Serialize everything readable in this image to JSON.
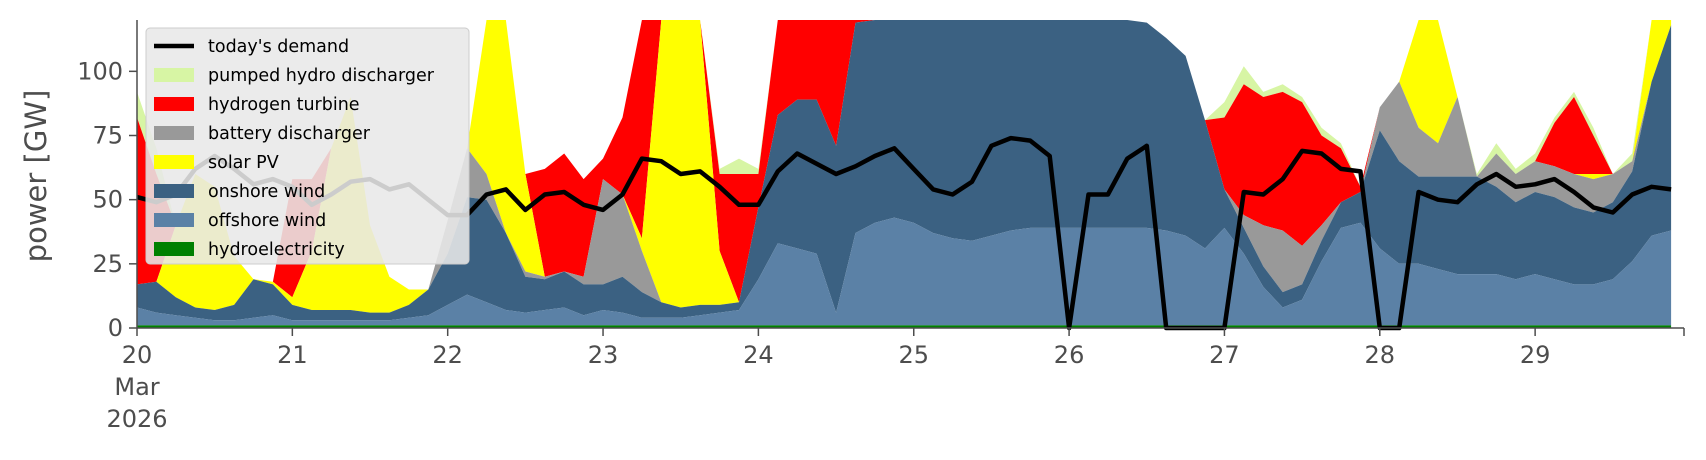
{
  "chart_data": {
    "type": "area",
    "ylabel": "power [GW]",
    "ylim": [
      0,
      120
    ],
    "xlim": [
      "2026-03-20T00:00",
      "2026-03-29T23:00"
    ],
    "yticks": [
      0,
      25,
      50,
      75,
      100
    ],
    "xticks": [
      {
        "value": "2026-03-20",
        "label": "20",
        "sub": [
          "Mar",
          "2026"
        ]
      },
      {
        "value": "2026-03-21",
        "label": "21"
      },
      {
        "value": "2026-03-22",
        "label": "22"
      },
      {
        "value": "2026-03-23",
        "label": "23"
      },
      {
        "value": "2026-03-24",
        "label": "24"
      },
      {
        "value": "2026-03-25",
        "label": "25"
      },
      {
        "value": "2026-03-26",
        "label": "26"
      },
      {
        "value": "2026-03-27",
        "label": "27"
      },
      {
        "value": "2026-03-28",
        "label": "28"
      },
      {
        "value": "2026-03-29",
        "label": "29"
      }
    ],
    "grid": false,
    "legend_position": "upper-left",
    "time_step_hours": 3,
    "series": [
      {
        "name": "hydroelectricity",
        "color": "#008000",
        "values": [
          1,
          1,
          1,
          1,
          1,
          1,
          1,
          1,
          1,
          1,
          1,
          1,
          1,
          1,
          1,
          1,
          1,
          1,
          1,
          1,
          1,
          1,
          1,
          1,
          1,
          1,
          1,
          1,
          1,
          1,
          1,
          1,
          1,
          1,
          1,
          1,
          1,
          1,
          1,
          1,
          1,
          1,
          1,
          1,
          1,
          1,
          1,
          1,
          1,
          1,
          1,
          1,
          1,
          1,
          1,
          1,
          1,
          1,
          1,
          1,
          1,
          1,
          1,
          1,
          1,
          1,
          1,
          1,
          1,
          1,
          1,
          1,
          1,
          1,
          1,
          1,
          1,
          1,
          1,
          1
        ]
      },
      {
        "name": "offshore wind",
        "color": "#5b81a6",
        "values": [
          7,
          5,
          4,
          3,
          2,
          2,
          3,
          4,
          2,
          2,
          2,
          2,
          2,
          2,
          3,
          4,
          8,
          12,
          9,
          6,
          5,
          6,
          7,
          4,
          6,
          5,
          3,
          3,
          3,
          4,
          5,
          6,
          18,
          32,
          30,
          28,
          5,
          36,
          40,
          42,
          40,
          36,
          34,
          33,
          35,
          37,
          38,
          38,
          38,
          38,
          38,
          38,
          38,
          37,
          35,
          30,
          38,
          28,
          15,
          7,
          10,
          25,
          38,
          40,
          30,
          24,
          24,
          22,
          20,
          20,
          20,
          18,
          20,
          18,
          16,
          16,
          18,
          25,
          35,
          37
        ]
      },
      {
        "name": "onshore wind",
        "color": "#3b6182",
        "values": [
          9,
          12,
          7,
          4,
          4,
          6,
          15,
          12,
          6,
          4,
          4,
          4,
          3,
          3,
          5,
          10,
          20,
          38,
          40,
          30,
          14,
          12,
          14,
          12,
          10,
          14,
          10,
          6,
          4,
          4,
          3,
          3,
          28,
          50,
          58,
          60,
          65,
          82,
          110,
          120,
          120,
          120,
          120,
          120,
          120,
          120,
          110,
          106,
          104,
          108,
          102,
          100,
          80,
          75,
          70,
          50,
          15,
          10,
          8,
          6,
          6,
          8,
          10,
          12,
          46,
          40,
          34,
          36,
          38,
          38,
          34,
          30,
          32,
          32,
          30,
          28,
          30,
          35,
          60,
          80
        ]
      },
      {
        "name": "battery discharger",
        "color": "#999999",
        "values": [
          0,
          0,
          0,
          0,
          0,
          0,
          0,
          0,
          0,
          0,
          0,
          0,
          0,
          0,
          0,
          0,
          0,
          0,
          0,
          0,
          0,
          0,
          0,
          0,
          0,
          0,
          0,
          0,
          0,
          0,
          0,
          0,
          0,
          0,
          0,
          0,
          0,
          0,
          0,
          0,
          0,
          0,
          0,
          0,
          0,
          0,
          0,
          0,
          0,
          0,
          0,
          0,
          0,
          0,
          0,
          0,
          0,
          0,
          0,
          0,
          0,
          0,
          0,
          0,
          0,
          0,
          0,
          0,
          0,
          0,
          0,
          0,
          0,
          0,
          0,
          0,
          0,
          0,
          0,
          0
        ]
      },
      {
        "name": "solar PV",
        "color": "#ffff00",
        "values": [
          0,
          0,
          0,
          0,
          0,
          0,
          0,
          0,
          0,
          0,
          0,
          0,
          0,
          0,
          0,
          0,
          0,
          0,
          0,
          0,
          0,
          0,
          0,
          0,
          0,
          0,
          0,
          0,
          0,
          0,
          0,
          0,
          0,
          0,
          0,
          0,
          0,
          0,
          0,
          0,
          0,
          0,
          0,
          0,
          0,
          0,
          0,
          0,
          0,
          0,
          0,
          0,
          0,
          0,
          0,
          0,
          0,
          0,
          0,
          0,
          0,
          0,
          0,
          0,
          0,
          0,
          0,
          0,
          0,
          0,
          0,
          0,
          0,
          0,
          0,
          0,
          0,
          0,
          0,
          0
        ]
      },
      {
        "name": "hydrogen turbine",
        "color": "#ff0000",
        "values": [
          0,
          0,
          0,
          0,
          0,
          0,
          0,
          0,
          0,
          0,
          0,
          0,
          0,
          0,
          0,
          0,
          0,
          0,
          0,
          0,
          0,
          0,
          0,
          0,
          0,
          0,
          0,
          0,
          0,
          0,
          0,
          0,
          0,
          0,
          0,
          0,
          0,
          0,
          0,
          0,
          0,
          0,
          0,
          0,
          0,
          0,
          0,
          0,
          0,
          0,
          0,
          0,
          0,
          0,
          0,
          0,
          0,
          0,
          0,
          0,
          0,
          0,
          0,
          0,
          0,
          0,
          0,
          0,
          0,
          0,
          0,
          0,
          0,
          0,
          0,
          0,
          0,
          0,
          0,
          0
        ]
      },
      {
        "name": "pumped hydro discharger",
        "color": "#d7f5a4",
        "values": [
          0,
          0,
          0,
          0,
          0,
          0,
          0,
          0,
          0,
          0,
          0,
          0,
          0,
          0,
          0,
          0,
          0,
          0,
          0,
          0,
          0,
          0,
          0,
          0,
          0,
          0,
          0,
          0,
          0,
          0,
          0,
          0,
          0,
          0,
          0,
          0,
          0,
          0,
          0,
          0,
          0,
          0,
          0,
          0,
          0,
          0,
          0,
          0,
          0,
          0,
          0,
          0,
          0,
          0,
          0,
          0,
          0,
          0,
          0,
          0,
          0,
          0,
          0,
          0,
          0,
          0,
          0,
          0,
          0,
          0,
          0,
          0,
          0,
          0,
          0,
          0,
          0,
          0,
          0,
          0
        ]
      }
    ],
    "filled_totals": {
      "battery discharger": [
        0,
        0,
        0,
        0,
        0,
        0,
        0,
        0,
        0,
        0,
        0,
        0,
        0,
        0,
        0,
        0,
        42,
        70,
        60,
        35,
        22,
        20,
        20,
        20,
        58,
        52,
        30,
        8,
        5,
        5,
        6,
        6,
        38,
        45,
        52,
        58,
        62,
        82,
        115,
        120,
        120,
        120,
        120,
        120,
        120,
        120,
        110,
        120,
        120,
        120,
        110,
        108,
        85,
        78,
        74,
        55,
        30,
        44,
        40,
        38,
        32,
        40,
        45,
        38,
        86,
        96,
        78,
        72,
        90,
        55,
        68,
        60,
        65,
        63,
        60,
        58,
        60,
        65,
        80,
        83
      ],
      "solar PV": [
        0,
        5,
        40,
        60,
        55,
        28,
        18,
        18,
        12,
        30,
        70,
        90,
        40,
        20,
        15,
        15,
        42,
        70,
        120,
        120,
        60,
        20,
        20,
        20,
        58,
        52,
        35,
        120,
        120,
        120,
        30,
        6,
        38,
        45,
        52,
        58,
        62,
        82,
        120,
        120,
        120,
        120,
        120,
        120,
        120,
        120,
        110,
        120,
        120,
        120,
        120,
        120,
        85,
        78,
        74,
        55,
        30,
        44,
        40,
        38,
        32,
        40,
        45,
        38,
        86,
        96,
        120,
        120,
        90,
        55,
        68,
        60,
        65,
        63,
        60,
        60,
        60,
        65,
        120,
        120
      ],
      "hydrogen turbine": [
        82,
        60,
        40,
        60,
        55,
        28,
        18,
        18,
        58,
        58,
        70,
        90,
        40,
        20,
        15,
        15,
        42,
        70,
        120,
        120,
        60,
        62,
        68,
        58,
        66,
        82,
        120,
        120,
        120,
        120,
        60,
        60,
        60,
        120,
        120,
        120,
        120,
        120,
        120,
        120,
        120,
        120,
        120,
        120,
        120,
        120,
        110,
        120,
        120,
        120,
        120,
        120,
        85,
        78,
        74,
        55,
        82,
        95,
        90,
        92,
        88,
        75,
        70,
        55,
        86,
        96,
        120,
        120,
        90,
        55,
        68,
        60,
        65,
        80,
        90,
        75,
        60,
        65,
        120,
        120
      ],
      "pumped hydro discharger": [
        92,
        70,
        40,
        60,
        55,
        28,
        18,
        18,
        58,
        58,
        70,
        90,
        40,
        20,
        15,
        15,
        42,
        70,
        120,
        120,
        60,
        62,
        68,
        58,
        66,
        82,
        120,
        120,
        120,
        120,
        62,
        66,
        62,
        120,
        120,
        120,
        120,
        120,
        120,
        120,
        120,
        120,
        120,
        120,
        120,
        120,
        110,
        120,
        120,
        120,
        120,
        120,
        85,
        78,
        74,
        55,
        88,
        102,
        92,
        95,
        90,
        78,
        72,
        55,
        86,
        96,
        120,
        120,
        90,
        60,
        72,
        62,
        68,
        82,
        92,
        78,
        60,
        68,
        120,
        120
      ]
    },
    "demand": {
      "name": "today's demand",
      "color": "#000000",
      "values": [
        51,
        49,
        52,
        62,
        67,
        62,
        56,
        58,
        55,
        48,
        52,
        57,
        58,
        54,
        56,
        50,
        44,
        44,
        52,
        54,
        46,
        52,
        53,
        48,
        46,
        52,
        66,
        65,
        60,
        61,
        55,
        48,
        48,
        61,
        68,
        64,
        60,
        63,
        67,
        70,
        62,
        54,
        52,
        57,
        71,
        74,
        73,
        67,
        0,
        52,
        52,
        66,
        71,
        0,
        0,
        0,
        0,
        53,
        52,
        58,
        69,
        68,
        62,
        61,
        0,
        0,
        53,
        50,
        49,
        56,
        60,
        55,
        56,
        58,
        53,
        47,
        45,
        52,
        55,
        54
      ]
    },
    "shade_start_index": 0,
    "shade_end_index": 14
  },
  "legend": {
    "items": [
      {
        "label": "today's demand",
        "kind": "line",
        "color": "#000000"
      },
      {
        "label": "pumped hydro discharger",
        "kind": "patch",
        "color": "#d7f5a4"
      },
      {
        "label": "hydrogen turbine",
        "kind": "patch",
        "color": "#ff0000"
      },
      {
        "label": "battery discharger",
        "kind": "patch",
        "color": "#999999"
      },
      {
        "label": "solar PV",
        "kind": "patch",
        "color": "#ffff00"
      },
      {
        "label": "onshore wind",
        "kind": "patch",
        "color": "#3b6182"
      },
      {
        "label": "offshore wind",
        "kind": "patch",
        "color": "#5b81a6"
      },
      {
        "label": "hydroelectricity",
        "kind": "patch",
        "color": "#008000"
      }
    ]
  }
}
